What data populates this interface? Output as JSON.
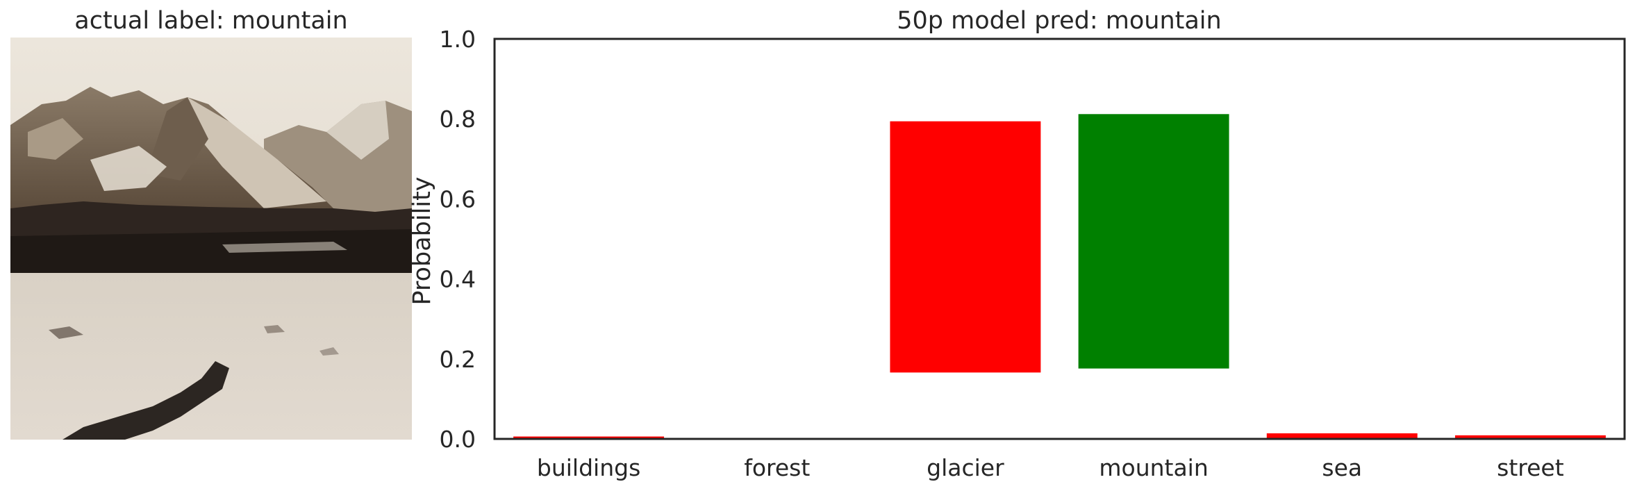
{
  "image_panel": {
    "title": "actual label: mountain",
    "image_description_icon": "sepia-mountain-photo"
  },
  "chart_data": {
    "type": "bar",
    "title": "50p model pred: mountain",
    "xlabel": "",
    "ylabel": "Probability",
    "ylim": [
      0,
      1.0
    ],
    "yticks": [
      "0.0",
      "0.2",
      "0.4",
      "0.6",
      "0.8",
      "1.0"
    ],
    "categories": [
      "buildings",
      "forest",
      "glacier",
      "mountain",
      "sea",
      "street"
    ],
    "series": [
      {
        "bars": [
          {
            "category": "buildings",
            "bottom": 0.0,
            "top": 0.006,
            "color": "#ff0000"
          },
          {
            "category": "forest",
            "bottom": 0.0,
            "top": 0.0,
            "color": "#ff0000"
          },
          {
            "category": "glacier",
            "bottom": 0.166,
            "top": 0.794,
            "color": "#ff0000"
          },
          {
            "category": "mountain",
            "bottom": 0.176,
            "top": 0.812,
            "color": "#008000"
          },
          {
            "category": "sea",
            "bottom": 0.0,
            "top": 0.014,
            "color": "#ff0000"
          },
          {
            "category": "street",
            "bottom": 0.0,
            "top": 0.009,
            "color": "#ff0000"
          }
        ]
      }
    ],
    "grid": false,
    "legend": "none"
  }
}
